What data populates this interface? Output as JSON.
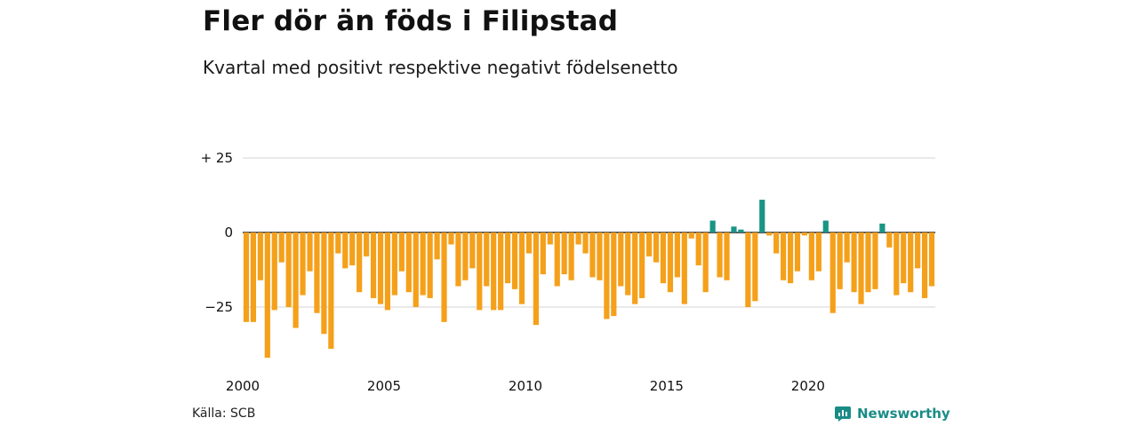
{
  "title": "Fler dör än föds i Filipstad",
  "subtitle": "Kvartal med positivt respektive negativt födelsenetto",
  "source": "Källa: SCB",
  "brand": "Newsworthy",
  "colors": {
    "positive": "#1a9585",
    "negative": "#f5a01a",
    "brand": "#1a8c86"
  },
  "chart_data": {
    "type": "bar",
    "xlabel": "",
    "ylabel": "",
    "ylim": [
      -42,
      25
    ],
    "yticks": [
      {
        "value": 25,
        "label": "+ 25"
      },
      {
        "value": 0,
        "label": "0"
      },
      {
        "value": -25,
        "label": "−25"
      }
    ],
    "xticks": [
      {
        "label": "2000",
        "index": 0
      },
      {
        "label": "2005",
        "index": 20
      },
      {
        "label": "2010",
        "index": 40
      },
      {
        "label": "2015",
        "index": 60
      },
      {
        "label": "2020",
        "index": 80
      }
    ],
    "start": "2000 Q1",
    "values": [
      -30,
      -30,
      -16,
      -42,
      -26,
      -10,
      -25,
      -32,
      -21,
      -13,
      -27,
      -34,
      -39,
      -7,
      -12,
      -11,
      -20,
      -8,
      -22,
      -24,
      -26,
      -21,
      -13,
      -20,
      -25,
      -21,
      -22,
      -9,
      -30,
      -4,
      -18,
      -16,
      -12,
      -26,
      -18,
      -26,
      -26,
      -17,
      -19,
      -24,
      -7,
      -31,
      -14,
      -4,
      -18,
      -14,
      -16,
      -4,
      -7,
      -15,
      -16,
      -29,
      -28,
      -18,
      -21,
      -24,
      -22,
      -8,
      -10,
      -17,
      -20,
      -15,
      -24,
      -2,
      -11,
      -20,
      4,
      -15,
      -16,
      2,
      1,
      -25,
      -23,
      11,
      -1,
      -7,
      -16,
      -17,
      -13,
      -1,
      -16,
      -13,
      4,
      -27,
      -19,
      -10,
      -20,
      -24,
      -20,
      -19,
      3,
      -5,
      -21,
      -17,
      -20,
      -12,
      -22,
      -18
    ]
  }
}
